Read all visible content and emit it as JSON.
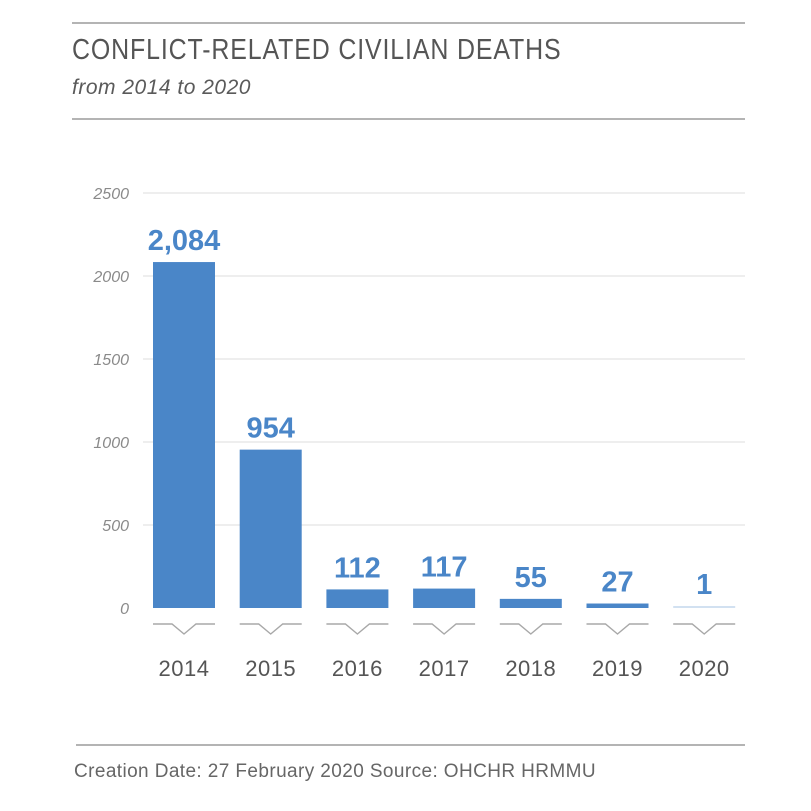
{
  "header": {
    "title": "CONFLICT-RELATED CIVILIAN DEATHS",
    "subtitle": "from 2014 to 2020"
  },
  "footer": {
    "text": "Creation Date: 27 February 2020  Source: OHCHR HRMMU"
  },
  "colors": {
    "bar": "#4a86c8",
    "gridline": "#e3e3e3",
    "marker": "#a8a8a8"
  },
  "chart_data": {
    "type": "bar",
    "title": "CONFLICT-RELATED CIVILIAN DEATHS",
    "subtitle": "from 2014 to 2020",
    "xlabel": "",
    "ylabel": "",
    "categories": [
      "2014",
      "2015",
      "2016",
      "2017",
      "2018",
      "2019",
      "2020"
    ],
    "values": [
      2084,
      954,
      112,
      117,
      55,
      27,
      1
    ],
    "data_labels": [
      "2,084",
      "954",
      "112",
      "117",
      "55",
      "27",
      "1"
    ],
    "ylim": [
      0,
      2500
    ],
    "yticks": [
      0,
      500,
      1000,
      1500,
      2000,
      2500
    ],
    "grid": true,
    "legend": "none"
  }
}
